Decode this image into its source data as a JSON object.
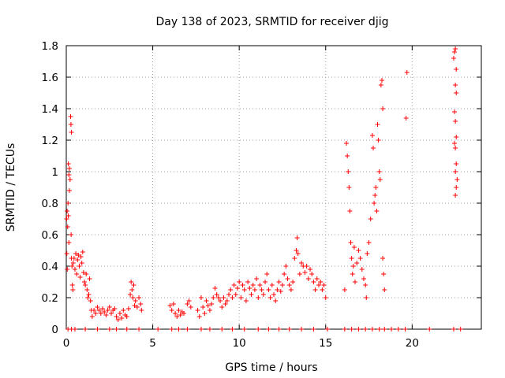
{
  "chart_data": {
    "type": "scatter",
    "title": "Day 138 of 2023, SRMTID for receiver djig",
    "xlabel": "GPS time / hours",
    "ylabel": "SRMTID / TECUs",
    "xlim": [
      0,
      24
    ],
    "ylim": [
      0,
      1.8
    ],
    "xticks": [
      0,
      5,
      10,
      15,
      20
    ],
    "yticks": [
      0,
      0.2,
      0.4,
      0.6,
      0.8,
      1,
      1.2,
      1.4,
      1.6,
      1.8
    ],
    "xtick_labels": [
      "0",
      "5",
      "10",
      "15",
      "20"
    ],
    "ytick_labels": [
      "0",
      "0.2",
      "0.4",
      "0.6",
      "0.8",
      "1",
      "1.2",
      "1.4",
      "1.6",
      "1.8"
    ],
    "grid": true,
    "marker": "+",
    "color": "#ff0000",
    "series": [
      {
        "name": "SRMTID",
        "points": [
          [
            0.02,
            0.7
          ],
          [
            0.05,
            0.75
          ],
          [
            0.08,
            0.65
          ],
          [
            0.1,
            0.8
          ],
          [
            0.12,
            0.72
          ],
          [
            0.15,
            0.55
          ],
          [
            0.03,
            0.48
          ],
          [
            0.06,
            0.38
          ],
          [
            0.12,
            1.05
          ],
          [
            0.15,
            0.98
          ],
          [
            0.18,
            1.02
          ],
          [
            0.22,
            0.95
          ],
          [
            0.18,
            0.88
          ],
          [
            0.25,
            1.35
          ],
          [
            0.27,
            1.3
          ],
          [
            0.3,
            1.25
          ],
          [
            0.28,
            0.6
          ],
          [
            0.3,
            0.45
          ],
          [
            0.33,
            0.4
          ],
          [
            0.35,
            0.28
          ],
          [
            0.38,
            0.25
          ],
          [
            0.4,
            0.42
          ],
          [
            0.45,
            0.45
          ],
          [
            0.5,
            0.38
          ],
          [
            0.55,
            0.48
          ],
          [
            0.6,
            0.35
          ],
          [
            0.65,
            0.44
          ],
          [
            0.7,
            0.47
          ],
          [
            0.75,
            0.4
          ],
          [
            0.8,
            0.33
          ],
          [
            0.85,
            0.46
          ],
          [
            0.9,
            0.42
          ],
          [
            0.95,
            0.49
          ],
          [
            1.0,
            0.36
          ],
          [
            1.05,
            0.3
          ],
          [
            1.1,
            0.28
          ],
          [
            1.15,
            0.35
          ],
          [
            1.2,
            0.25
          ],
          [
            1.25,
            0.2
          ],
          [
            1.3,
            0.22
          ],
          [
            1.35,
            0.32
          ],
          [
            1.4,
            0.18
          ],
          [
            1.45,
            0.12
          ],
          [
            1.5,
            0.08
          ],
          [
            1.6,
            0.12
          ],
          [
            1.7,
            0.1
          ],
          [
            1.8,
            0.14
          ],
          [
            1.9,
            0.12
          ],
          [
            2.0,
            0.1
          ],
          [
            2.1,
            0.13
          ],
          [
            2.2,
            0.11
          ],
          [
            2.3,
            0.09
          ],
          [
            2.4,
            0.12
          ],
          [
            2.5,
            0.14
          ],
          [
            2.6,
            0.1
          ],
          [
            2.7,
            0.12
          ],
          [
            2.8,
            0.13
          ],
          [
            2.9,
            0.08
          ],
          [
            3.0,
            0.06
          ],
          [
            3.1,
            0.1
          ],
          [
            3.2,
            0.07
          ],
          [
            3.3,
            0.12
          ],
          [
            3.4,
            0.09
          ],
          [
            3.5,
            0.08
          ],
          [
            3.6,
            0.13
          ],
          [
            3.7,
            0.22
          ],
          [
            3.75,
            0.3
          ],
          [
            3.8,
            0.25
          ],
          [
            3.85,
            0.2
          ],
          [
            3.9,
            0.28
          ],
          [
            3.95,
            0.15
          ],
          [
            4.0,
            0.18
          ],
          [
            4.1,
            0.14
          ],
          [
            4.2,
            0.2
          ],
          [
            4.3,
            0.16
          ],
          [
            4.35,
            0.12
          ],
          [
            6.0,
            0.15
          ],
          [
            6.1,
            0.12
          ],
          [
            6.2,
            0.16
          ],
          [
            6.3,
            0.1
          ],
          [
            6.4,
            0.08
          ],
          [
            6.5,
            0.12
          ],
          [
            6.6,
            0.09
          ],
          [
            6.7,
            0.11
          ],
          [
            6.8,
            0.1
          ],
          [
            7.0,
            0.16
          ],
          [
            7.1,
            0.18
          ],
          [
            7.2,
            0.14
          ],
          [
            7.6,
            0.12
          ],
          [
            7.7,
            0.08
          ],
          [
            7.8,
            0.2
          ],
          [
            7.9,
            0.14
          ],
          [
            8.0,
            0.1
          ],
          [
            8.1,
            0.18
          ],
          [
            8.2,
            0.15
          ],
          [
            8.3,
            0.12
          ],
          [
            8.4,
            0.16
          ],
          [
            8.5,
            0.2
          ],
          [
            8.6,
            0.26
          ],
          [
            8.7,
            0.22
          ],
          [
            8.8,
            0.2
          ],
          [
            8.9,
            0.18
          ],
          [
            9.0,
            0.14
          ],
          [
            9.1,
            0.2
          ],
          [
            9.2,
            0.16
          ],
          [
            9.3,
            0.18
          ],
          [
            9.4,
            0.22
          ],
          [
            9.5,
            0.25
          ],
          [
            9.6,
            0.2
          ],
          [
            9.7,
            0.28
          ],
          [
            9.8,
            0.22
          ],
          [
            9.9,
            0.26
          ],
          [
            10.0,
            0.3
          ],
          [
            10.1,
            0.2
          ],
          [
            10.2,
            0.28
          ],
          [
            10.3,
            0.25
          ],
          [
            10.4,
            0.18
          ],
          [
            10.5,
            0.3
          ],
          [
            10.6,
            0.26
          ],
          [
            10.7,
            0.22
          ],
          [
            10.8,
            0.28
          ],
          [
            10.9,
            0.25
          ],
          [
            11.0,
            0.32
          ],
          [
            11.1,
            0.2
          ],
          [
            11.2,
            0.28
          ],
          [
            11.3,
            0.25
          ],
          [
            11.4,
            0.22
          ],
          [
            11.5,
            0.3
          ],
          [
            11.6,
            0.35
          ],
          [
            11.7,
            0.25
          ],
          [
            11.8,
            0.2
          ],
          [
            11.9,
            0.28
          ],
          [
            12.0,
            0.22
          ],
          [
            12.1,
            0.18
          ],
          [
            12.2,
            0.25
          ],
          [
            12.3,
            0.3
          ],
          [
            12.4,
            0.24
          ],
          [
            12.5,
            0.28
          ],
          [
            12.6,
            0.35
          ],
          [
            12.7,
            0.4
          ],
          [
            12.8,
            0.32
          ],
          [
            12.9,
            0.28
          ],
          [
            13.0,
            0.25
          ],
          [
            13.1,
            0.3
          ],
          [
            13.2,
            0.45
          ],
          [
            13.3,
            0.5
          ],
          [
            13.35,
            0.58
          ],
          [
            13.4,
            0.48
          ],
          [
            13.5,
            0.35
          ],
          [
            13.6,
            0.42
          ],
          [
            13.7,
            0.4
          ],
          [
            13.8,
            0.36
          ],
          [
            13.9,
            0.4
          ],
          [
            14.0,
            0.32
          ],
          [
            14.1,
            0.38
          ],
          [
            14.2,
            0.35
          ],
          [
            14.3,
            0.3
          ],
          [
            14.4,
            0.25
          ],
          [
            14.5,
            0.32
          ],
          [
            14.6,
            0.28
          ],
          [
            14.7,
            0.3
          ],
          [
            14.8,
            0.25
          ],
          [
            14.9,
            0.28
          ],
          [
            15.0,
            0.2
          ],
          [
            16.1,
            0.25
          ],
          [
            16.2,
            1.18
          ],
          [
            16.25,
            1.1
          ],
          [
            16.3,
            1.0
          ],
          [
            16.35,
            0.9
          ],
          [
            16.4,
            0.75
          ],
          [
            16.45,
            0.55
          ],
          [
            16.5,
            0.45
          ],
          [
            16.55,
            0.35
          ],
          [
            16.6,
            0.4
          ],
          [
            16.65,
            0.52
          ],
          [
            16.7,
            0.3
          ],
          [
            16.8,
            0.42
          ],
          [
            16.9,
            0.5
          ],
          [
            17.0,
            0.45
          ],
          [
            17.1,
            0.38
          ],
          [
            17.2,
            0.32
          ],
          [
            17.3,
            0.28
          ],
          [
            17.35,
            0.2
          ],
          [
            17.4,
            0.48
          ],
          [
            17.5,
            0.55
          ],
          [
            17.6,
            0.7
          ],
          [
            17.7,
            1.23
          ],
          [
            17.75,
            1.15
          ],
          [
            17.8,
            0.8
          ],
          [
            17.85,
            0.85
          ],
          [
            17.9,
            0.9
          ],
          [
            17.95,
            0.75
          ],
          [
            18.0,
            1.3
          ],
          [
            18.05,
            1.2
          ],
          [
            18.1,
            1.0
          ],
          [
            18.15,
            0.95
          ],
          [
            18.2,
            1.55
          ],
          [
            18.25,
            1.58
          ],
          [
            18.3,
            1.4
          ],
          [
            18.3,
            0.45
          ],
          [
            18.35,
            0.35
          ],
          [
            18.4,
            0.25
          ],
          [
            19.7,
            1.63
          ],
          [
            19.65,
            1.34
          ],
          [
            22.4,
            1.72
          ],
          [
            22.45,
            1.76
          ],
          [
            22.5,
            1.78
          ],
          [
            22.55,
            1.65
          ],
          [
            22.5,
            1.55
          ],
          [
            22.55,
            1.5
          ],
          [
            22.45,
            1.38
          ],
          [
            22.5,
            1.32
          ],
          [
            22.55,
            1.22
          ],
          [
            22.45,
            1.18
          ],
          [
            22.5,
            1.15
          ],
          [
            22.55,
            1.05
          ],
          [
            22.5,
            1.0
          ],
          [
            22.6,
            0.95
          ],
          [
            22.55,
            0.9
          ],
          [
            22.5,
            0.85
          ],
          [
            0.1,
            0
          ],
          [
            0.3,
            0
          ],
          [
            0.5,
            0
          ],
          [
            1.1,
            0
          ],
          [
            1.8,
            0
          ],
          [
            2.5,
            0
          ],
          [
            2.9,
            0
          ],
          [
            3.5,
            0
          ],
          [
            4.2,
            0
          ],
          [
            5.3,
            0
          ],
          [
            6.1,
            0
          ],
          [
            6.5,
            0
          ],
          [
            7.0,
            0
          ],
          [
            7.8,
            0
          ],
          [
            8.3,
            0
          ],
          [
            9.0,
            0
          ],
          [
            9.6,
            0
          ],
          [
            10.3,
            0
          ],
          [
            11.1,
            0
          ],
          [
            11.7,
            0
          ],
          [
            12.3,
            0
          ],
          [
            12.9,
            0
          ],
          [
            13.6,
            0
          ],
          [
            14.3,
            0
          ],
          [
            15.1,
            0
          ],
          [
            16.1,
            0
          ],
          [
            16.5,
            0
          ],
          [
            16.9,
            0
          ],
          [
            17.3,
            0
          ],
          [
            17.7,
            0
          ],
          [
            18.1,
            0
          ],
          [
            18.4,
            0
          ],
          [
            18.8,
            0
          ],
          [
            19.2,
            0
          ],
          [
            19.6,
            0
          ],
          [
            21.0,
            0
          ],
          [
            22.4,
            0
          ],
          [
            22.8,
            0
          ]
        ]
      }
    ]
  }
}
